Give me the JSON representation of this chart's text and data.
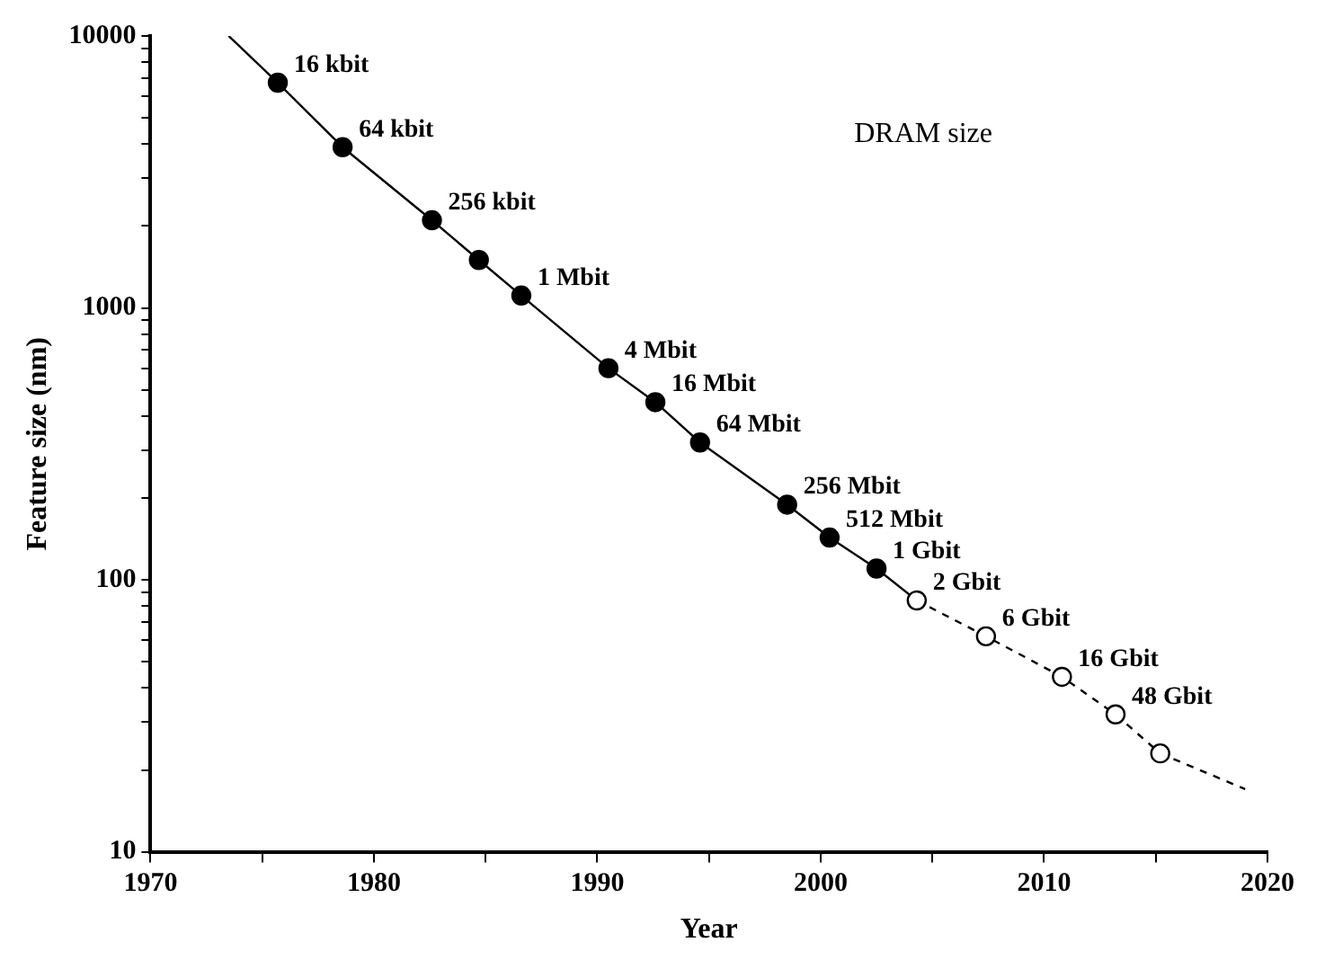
{
  "chart_data": {
    "type": "line",
    "xlabel": "Year",
    "ylabel": "Feature size (nm)",
    "log": "y",
    "grid": false,
    "legend": false,
    "xlim": [
      1970,
      2020
    ],
    "ylim": [
      10,
      10000
    ],
    "xticks": [
      1970,
      {
        "value": 1975,
        "label": null
      },
      1980,
      {
        "value": 1985,
        "label": null
      },
      1990,
      {
        "value": 1995,
        "label": null
      },
      2000,
      {
        "value": 2005,
        "label": null
      },
      2010,
      {
        "value": 2015,
        "label": null
      },
      2020
    ],
    "yticks": [
      10,
      {
        "value": 20,
        "label": null
      },
      {
        "value": 30,
        "label": null
      },
      {
        "value": 40,
        "label": null
      },
      {
        "value": 50,
        "label": null
      },
      {
        "value": 60,
        "label": null
      },
      {
        "value": 70,
        "label": null
      },
      {
        "value": 80,
        "label": null
      },
      {
        "value": 90,
        "label": null
      },
      100,
      {
        "value": 200,
        "label": null
      },
      {
        "value": 300,
        "label": null
      },
      {
        "value": 400,
        "label": null
      },
      {
        "value": 500,
        "label": null
      },
      {
        "value": 600,
        "label": null
      },
      {
        "value": 700,
        "label": null
      },
      {
        "value": 800,
        "label": null
      },
      {
        "value": 900,
        "label": null
      },
      1000,
      {
        "value": 2000,
        "label": null
      },
      {
        "value": 3000,
        "label": null
      },
      {
        "value": 4000,
        "label": null
      },
      {
        "value": 5000,
        "label": null
      },
      {
        "value": 6000,
        "label": null
      },
      {
        "value": 7000,
        "label": null
      },
      {
        "value": 8000,
        "label": null
      },
      {
        "value": 9000,
        "label": null
      },
      10000
    ],
    "series": [
      {
        "marker": "circle",
        "line_style": "solid",
        "color": "#000000",
        "x": [
          1975.7,
          1978.6,
          1982.6,
          1984.7,
          1986.6,
          1990.5,
          1992.6,
          1994.6,
          1998.5,
          2000.4,
          2002.5
        ],
        "values": [
          6730,
          3900,
          2100,
          1500,
          1110,
          600,
          450,
          320,
          189,
          143,
          110
        ]
      },
      {
        "marker": "circle",
        "line_style": "dashed",
        "color": "#000000",
        "x": [
          2004.3,
          2007.4,
          2010.8,
          2013.2,
          2015.2
        ],
        "values": [
          84,
          62,
          44,
          32,
          23
        ]
      },
      {
        "marker": "none",
        "line_style": "solid",
        "color": "#000000",
        "x": [
          1973.5,
          1975.7
        ],
        "values": [
          10000,
          6730
        ]
      },
      {
        "marker": "none",
        "line_style": "solid",
        "color": "#000000",
        "x": [
          2002.5,
          2004.3
        ],
        "values": [
          110,
          84
        ]
      },
      {
        "marker": "none",
        "line_style": "dashed",
        "color": "#000000",
        "x": [
          2015.2,
          2019.0
        ],
        "values": [
          23,
          17
        ]
      }
    ],
    "annotations": [
      "DRAM size",
      {
        "text": "16 kbit",
        "x": 1975.7,
        "y": 6730
      },
      {
        "text": "64 kbit",
        "x": 1978.6,
        "y": 3900
      },
      {
        "text": "256 kbit",
        "x": 1982.6,
        "y": 2100
      },
      {
        "text": "1 Mbit",
        "x": 1986.6,
        "y": 1110
      },
      {
        "text": "4 Mbit",
        "x": 1990.5,
        "y": 600
      },
      {
        "text": "16 Mbit",
        "x": 1992.6,
        "y": 450
      },
      {
        "text": "64 Mbit",
        "x": 1994.6,
        "y": 320
      },
      {
        "text": "256 Mbit",
        "x": 1998.5,
        "y": 189
      },
      {
        "text": "512 Mbit",
        "x": 2000.4,
        "y": 143
      },
      {
        "text": "1 Gbit",
        "x": 2002.5,
        "y": 110
      },
      {
        "text": "2 Gbit",
        "x": 2004.3,
        "y": 84
      },
      {
        "text": "6 Gbit",
        "x": 2007.4,
        "y": 62
      },
      {
        "text": "16 Gbit",
        "x": 2010.8,
        "y": 44
      },
      {
        "text": "48 Gbit",
        "x": 2013.2,
        "y": 32
      }
    ]
  }
}
